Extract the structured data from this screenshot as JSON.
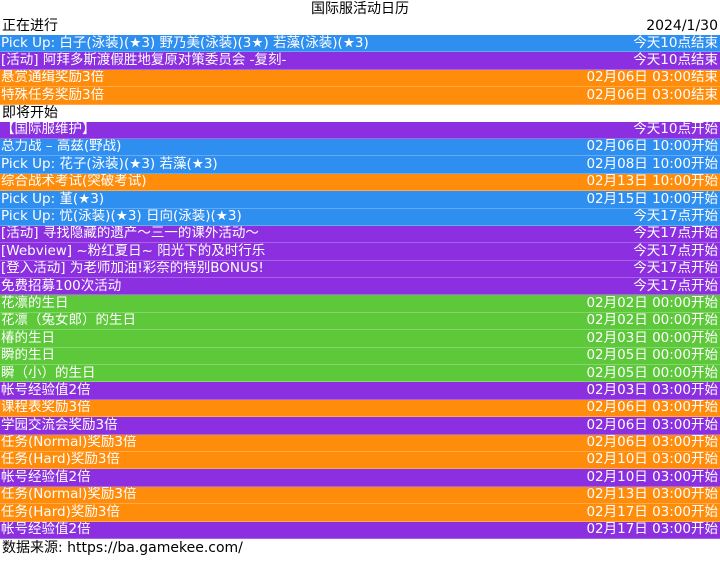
{
  "title": "国际服活动日历",
  "colors": {
    "blue": "#2f8ff0",
    "orange": "#ff8c0a",
    "purple": "#8b2fe0",
    "green": "#5cc83a"
  },
  "ongoing": {
    "label": "正在进行",
    "date": "2024/1/30",
    "rows": [
      {
        "name": "Pick Up: 白子(泳装)(★3) 野乃美(泳装)(3★) 若藻(泳装)(★3)",
        "time": "今天10点结束",
        "color": "blue"
      },
      {
        "name": "[活动] 阿拜多斯渡假胜地复原对策委员会 -复刻-",
        "time": "今天10点结束",
        "color": "purple"
      },
      {
        "name": "悬赏通缉奖励3倍",
        "time": "02月06日 03:00结束",
        "color": "orange"
      },
      {
        "name": "特殊任务奖励3倍",
        "time": "02月06日 03:00结束",
        "color": "orange"
      }
    ]
  },
  "upcoming": {
    "label": "即将开始",
    "rows": [
      {
        "name": "【国际服维护】",
        "time": "今天10点开始",
        "color": "purple"
      },
      {
        "name": "总力战 – 高兹(野战)",
        "time": "02月06日 10:00开始",
        "color": "blue"
      },
      {
        "name": "Pick Up: 花子(泳装)(★3) 若藻(★3)",
        "time": "02月08日 10:00开始",
        "color": "blue"
      },
      {
        "name": "综合战术考试(突破考试)",
        "time": "02月13日 10:00开始",
        "color": "orange"
      },
      {
        "name": "Pick Up: 堇(★3)",
        "time": "02月15日 10:00开始",
        "color": "blue"
      },
      {
        "name": "Pick Up: 忧(泳装)(★3) 日向(泳装)(★3)",
        "time": "今天17点开始",
        "color": "blue"
      },
      {
        "name": "[活动] 寻找隐藏的遗产～三一的课外活动～",
        "time": "今天17点开始",
        "color": "purple"
      },
      {
        "name": "[Webview] ~粉红夏日~ 阳光下的及时行乐",
        "time": "今天17点开始",
        "color": "purple"
      },
      {
        "name": "[登入活动] 为老师加油!彩奈的特别BONUS!",
        "time": "今天17点开始",
        "color": "purple"
      },
      {
        "name": "免费招募100次活动",
        "time": "今天17点开始",
        "color": "purple"
      },
      {
        "name": "花凛的生日",
        "time": "02月02日 00:00开始",
        "color": "green"
      },
      {
        "name": "花凛（兔女郎）的生日",
        "time": "02月02日 00:00开始",
        "color": "green"
      },
      {
        "name": "椿的生日",
        "time": "02月03日 00:00开始",
        "color": "green"
      },
      {
        "name": "瞬的生日",
        "time": "02月05日 00:00开始",
        "color": "green"
      },
      {
        "name": "瞬（小）的生日",
        "time": "02月05日 00:00开始",
        "color": "green"
      },
      {
        "name": "帐号经验值2倍",
        "time": "02月03日 03:00开始",
        "color": "purple"
      },
      {
        "name": "课程表奖励3倍",
        "time": "02月06日 03:00开始",
        "color": "orange"
      },
      {
        "name": "学园交流会奖励3倍",
        "time": "02月06日 03:00开始",
        "color": "purple"
      },
      {
        "name": "任务(Normal)奖励3倍",
        "time": "02月06日 03:00开始",
        "color": "orange"
      },
      {
        "name": "任务(Hard)奖励3倍",
        "time": "02月10日 03:00开始",
        "color": "orange"
      },
      {
        "name": "帐号经验值2倍",
        "time": "02月10日 03:00开始",
        "color": "purple"
      },
      {
        "name": "任务(Normal)奖励3倍",
        "time": "02月13日 03:00开始",
        "color": "orange"
      },
      {
        "name": "任务(Hard)奖励3倍",
        "time": "02月17日 03:00开始",
        "color": "orange"
      },
      {
        "name": "帐号经验值2倍",
        "time": "02月17日 03:00开始",
        "color": "purple"
      }
    ]
  },
  "footer": "数据来源: https://ba.gamekee.com/"
}
